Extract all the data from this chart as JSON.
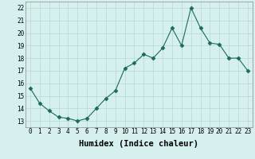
{
  "x": [
    0,
    1,
    2,
    3,
    4,
    5,
    6,
    7,
    8,
    9,
    10,
    11,
    12,
    13,
    14,
    15,
    16,
    17,
    18,
    19,
    20,
    21,
    22,
    23
  ],
  "y": [
    15.6,
    14.4,
    13.8,
    13.3,
    13.2,
    13.0,
    13.2,
    14.0,
    14.8,
    15.4,
    17.2,
    17.6,
    18.3,
    18.0,
    18.8,
    20.4,
    19.0,
    22.0,
    20.4,
    19.2,
    19.1,
    18.0,
    18.0,
    17.0
  ],
  "xlabel": "Humidex (Indice chaleur)",
  "xlim": [
    -0.5,
    23.5
  ],
  "ylim": [
    12.5,
    22.5
  ],
  "yticks": [
    13,
    14,
    15,
    16,
    17,
    18,
    19,
    20,
    21,
    22
  ],
  "xticks": [
    0,
    1,
    2,
    3,
    4,
    5,
    6,
    7,
    8,
    9,
    10,
    11,
    12,
    13,
    14,
    15,
    16,
    17,
    18,
    19,
    20,
    21,
    22,
    23
  ],
  "line_color": "#1a6b5a",
  "marker": "D",
  "bg_color": "#d6f0f0",
  "grid_color": "#b8d8d0",
  "tick_fontsize": 5.5,
  "xlabel_fontsize": 7.5
}
